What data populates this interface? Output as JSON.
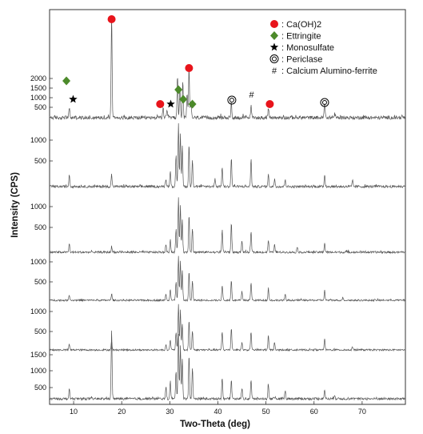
{
  "chart_data": {
    "type": "line",
    "title": "",
    "xlabel": "Two-Theta (deg)",
    "ylabel": "Intensity (CPS)",
    "xlim": [
      5,
      79
    ],
    "x_ticks": [
      10,
      20,
      30,
      40,
      50,
      60,
      70
    ],
    "panels": [
      {
        "ticks": [
          500,
          1000,
          1500,
          2000
        ]
      },
      {
        "ticks": [
          500,
          1000
        ]
      },
      {
        "ticks": [
          500,
          1000
        ]
      },
      {
        "ticks": [
          500,
          1000
        ]
      },
      {
        "ticks": [
          500,
          1000
        ]
      },
      {
        "ticks": [
          500,
          1000,
          1500
        ]
      }
    ],
    "series": [
      {
        "peaks": [
          [
            9.1,
            0.1
          ],
          [
            17.9,
            1.0
          ],
          [
            28.6,
            0.1
          ],
          [
            29.4,
            0.06
          ],
          [
            31.6,
            0.4
          ],
          [
            32.1,
            0.3
          ],
          [
            32.7,
            0.36
          ],
          [
            33.6,
            0.22
          ],
          [
            34.0,
            0.48
          ],
          [
            34.4,
            0.16
          ],
          [
            42.8,
            0.14
          ],
          [
            46.9,
            0.12
          ],
          [
            50.5,
            0.08
          ],
          [
            62.2,
            0.14
          ],
          [
            64.3,
            0.04
          ]
        ]
      },
      {
        "peaks": [
          [
            9.1,
            0.18
          ],
          [
            17.9,
            0.18
          ],
          [
            29.2,
            0.12
          ],
          [
            30.1,
            0.24
          ],
          [
            31.3,
            0.45
          ],
          [
            31.8,
            0.92
          ],
          [
            32.2,
            0.78
          ],
          [
            32.6,
            0.6
          ],
          [
            34.0,
            0.62
          ],
          [
            34.7,
            0.4
          ],
          [
            39.4,
            0.12
          ],
          [
            40.9,
            0.28
          ],
          [
            42.8,
            0.42
          ],
          [
            46.9,
            0.4
          ],
          [
            50.5,
            0.18
          ],
          [
            51.8,
            0.12
          ],
          [
            54.0,
            0.1
          ],
          [
            62.2,
            0.18
          ],
          [
            68.0,
            0.08
          ]
        ]
      },
      {
        "peaks": [
          [
            9.1,
            0.15
          ],
          [
            17.9,
            0.1
          ],
          [
            29.2,
            0.14
          ],
          [
            30.1,
            0.22
          ],
          [
            31.3,
            0.4
          ],
          [
            31.8,
            0.95
          ],
          [
            32.2,
            0.8
          ],
          [
            32.6,
            0.58
          ],
          [
            34.0,
            0.66
          ],
          [
            34.7,
            0.42
          ],
          [
            40.9,
            0.38
          ],
          [
            42.8,
            0.5
          ],
          [
            45.0,
            0.2
          ],
          [
            46.9,
            0.35
          ],
          [
            50.5,
            0.22
          ],
          [
            51.8,
            0.14
          ],
          [
            56.5,
            0.1
          ],
          [
            62.2,
            0.16
          ]
        ]
      },
      {
        "peaks": [
          [
            9.1,
            0.12
          ],
          [
            17.9,
            0.14
          ],
          [
            29.2,
            0.14
          ],
          [
            30.1,
            0.24
          ],
          [
            31.3,
            0.4
          ],
          [
            31.8,
            0.92
          ],
          [
            32.2,
            0.82
          ],
          [
            32.6,
            0.62
          ],
          [
            34.0,
            0.6
          ],
          [
            34.7,
            0.4
          ],
          [
            40.9,
            0.32
          ],
          [
            42.8,
            0.42
          ],
          [
            45.0,
            0.18
          ],
          [
            46.9,
            0.36
          ],
          [
            50.5,
            0.26
          ],
          [
            54.0,
            0.12
          ],
          [
            62.2,
            0.2
          ],
          [
            66.0,
            0.06
          ]
        ]
      },
      {
        "peaks": [
          [
            9.1,
            0.12
          ],
          [
            17.9,
            0.18
          ],
          [
            29.2,
            0.12
          ],
          [
            30.1,
            0.22
          ],
          [
            31.3,
            0.38
          ],
          [
            31.8,
            0.95
          ],
          [
            32.2,
            0.85
          ],
          [
            32.6,
            0.55
          ],
          [
            34.0,
            0.62
          ],
          [
            34.7,
            0.4
          ],
          [
            40.9,
            0.38
          ],
          [
            42.8,
            0.46
          ],
          [
            45.0,
            0.16
          ],
          [
            46.9,
            0.38
          ],
          [
            50.5,
            0.3
          ],
          [
            51.8,
            0.16
          ],
          [
            62.2,
            0.22
          ],
          [
            68.0,
            0.06
          ]
        ]
      },
      {
        "peaks": [
          [
            9.1,
            0.14
          ],
          [
            17.9,
            1.0
          ],
          [
            29.2,
            0.18
          ],
          [
            30.1,
            0.26
          ],
          [
            31.3,
            0.42
          ],
          [
            31.8,
            0.98
          ],
          [
            32.2,
            0.8
          ],
          [
            32.6,
            0.6
          ],
          [
            34.0,
            0.66
          ],
          [
            34.7,
            0.46
          ],
          [
            40.9,
            0.32
          ],
          [
            42.8,
            0.28
          ],
          [
            45.0,
            0.16
          ],
          [
            46.9,
            0.28
          ],
          [
            50.5,
            0.22
          ],
          [
            54.0,
            0.12
          ],
          [
            62.2,
            0.14
          ],
          [
            64.3,
            0.06
          ]
        ]
      }
    ],
    "annotations": [
      {
        "type": "circle",
        "x": 17.9,
        "label": "Ca(OH)2"
      },
      {
        "type": "circle",
        "x": 28.0,
        "label": "Ca(OH)2"
      },
      {
        "type": "circle",
        "x": 34.0,
        "label": "Ca(OH)2"
      },
      {
        "type": "circle",
        "x": 50.8,
        "label": "Ca(OH)2"
      },
      {
        "type": "diamond",
        "x": 8.5,
        "label": "Ettringite"
      },
      {
        "type": "diamond",
        "x": 31.8,
        "label": "Ettringite"
      },
      {
        "type": "diamond",
        "x": 32.8,
        "label": "Ettringite"
      },
      {
        "type": "diamond",
        "x": 34.7,
        "label": "Ettringite"
      },
      {
        "type": "star",
        "x": 9.9,
        "label": "Monosulfate"
      },
      {
        "type": "star",
        "x": 30.2,
        "label": "Monosulfate"
      },
      {
        "type": "double_circle",
        "x": 42.9,
        "label": "Periclase"
      },
      {
        "type": "double_circle",
        "x": 62.2,
        "label": "Periclase"
      },
      {
        "type": "hash",
        "x": 47.0,
        "label": "Calcium Alumino-ferrite"
      }
    ],
    "legend": {
      "placement": "top-right",
      "entries": [
        {
          "symbol": "circle",
          "color": "#e8141b",
          "label": ": Ca(OH)2"
        },
        {
          "symbol": "diamond",
          "color": "#4c8a2a",
          "label": ": Ettringite"
        },
        {
          "symbol": "star",
          "color": "#000000",
          "label": ": Monosulfate"
        },
        {
          "symbol": "double_circle",
          "color": "#000000",
          "label": ": Periclase"
        },
        {
          "symbol": "hash",
          "color": "#000000",
          "label": ": Calcium Alumino-ferrite"
        }
      ]
    },
    "grid": false,
    "colors": {
      "line": "#555555",
      "circle": "#e8141b",
      "diamond": "#4c8a2a",
      "star": "#000000"
    }
  }
}
